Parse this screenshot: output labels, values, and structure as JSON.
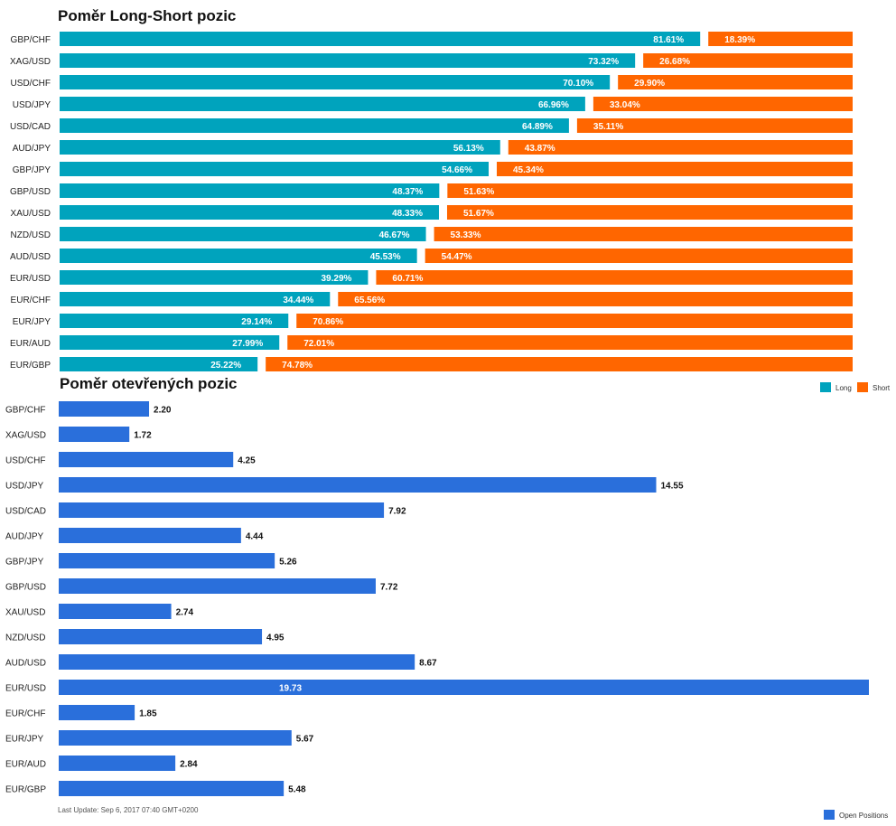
{
  "colors": {
    "long": "#00a3bd",
    "short": "#ff6600",
    "open": "#2a6fdb"
  },
  "chart_data": [
    {
      "type": "bar",
      "orientation": "horizontal",
      "stacked": true,
      "title": "Poměr Long-Short pozic",
      "categories": [
        "GBP/CHF",
        "XAG/USD",
        "USD/CHF",
        "USD/JPY",
        "USD/CAD",
        "AUD/JPY",
        "GBP/JPY",
        "GBP/USD",
        "XAU/USD",
        "NZD/USD",
        "AUD/USD",
        "EUR/USD",
        "EUR/CHF",
        "EUR/JPY",
        "EUR/AUD",
        "EUR/GBP"
      ],
      "series": [
        {
          "name": "Long",
          "values": [
            81.61,
            73.32,
            70.1,
            66.96,
            64.89,
            56.13,
            54.66,
            48.37,
            48.33,
            46.67,
            45.53,
            39.29,
            34.44,
            29.14,
            27.99,
            25.22
          ],
          "labels": [
            "81.61%",
            "73.32%",
            "70.10%",
            "66.96%",
            "64.89%",
            "56.13%",
            "54.66%",
            "48.37%",
            "48.33%",
            "46.67%",
            "45.53%",
            "39.29%",
            "34.44%",
            "29.14%",
            "27.99%",
            "25.22%"
          ]
        },
        {
          "name": "Short",
          "values": [
            18.39,
            26.68,
            29.9,
            33.04,
            35.11,
            43.87,
            45.34,
            51.63,
            51.67,
            53.33,
            54.47,
            60.71,
            65.56,
            70.86,
            72.01,
            74.78
          ],
          "labels": [
            "18.39%",
            "26.68%",
            "29.90%",
            "33.04%",
            "35.11%",
            "43.87%",
            "45.34%",
            "51.63%",
            "51.67%",
            "53.33%",
            "54.47%",
            "60.71%",
            "65.56%",
            "70.86%",
            "72.01%",
            "74.78%"
          ]
        }
      ],
      "xlim": [
        0,
        100
      ],
      "legend": "bottom-right"
    },
    {
      "type": "bar",
      "orientation": "horizontal",
      "title": "Poměr otevřených pozic",
      "categories": [
        "GBP/CHF",
        "XAG/USD",
        "USD/CHF",
        "USD/JPY",
        "USD/CAD",
        "AUD/JPY",
        "GBP/JPY",
        "GBP/USD",
        "XAU/USD",
        "NZD/USD",
        "AUD/USD",
        "EUR/USD",
        "EUR/CHF",
        "EUR/JPY",
        "EUR/AUD",
        "EUR/GBP"
      ],
      "series": [
        {
          "name": "Open Positions",
          "values": [
            2.2,
            1.72,
            4.25,
            14.55,
            7.92,
            4.44,
            5.26,
            7.72,
            2.74,
            4.95,
            8.67,
            19.73,
            1.85,
            5.67,
            2.84,
            5.48
          ],
          "labels": [
            "2.20",
            "1.72",
            "4.25",
            "14.55",
            "7.92",
            "4.44",
            "5.26",
            "7.72",
            "2.74",
            "4.95",
            "8.67",
            "19.73",
            "1.85",
            "5.67",
            "2.84",
            "5.48"
          ]
        }
      ],
      "xlim": [
        0,
        19.73
      ],
      "legend": "bottom-right"
    }
  ],
  "footer": "Last Update: Sep 6, 2017 07:40 GMT+0200"
}
